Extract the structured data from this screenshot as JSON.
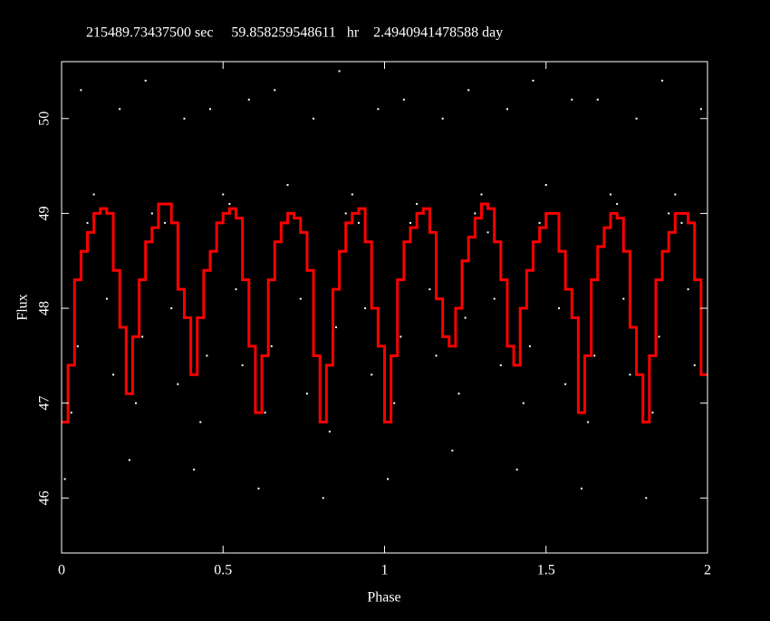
{
  "chart_data": {
    "type": "scatter_step",
    "title": "215489.73437500 sec     59.858259548611   hr    2.4940941478588 day",
    "xlabel": "Phase",
    "ylabel": "Flux",
    "xlim": [
      0,
      2
    ],
    "ylim": [
      45.42,
      50.6
    ],
    "xticks": [
      0,
      0.5,
      1,
      1.5,
      2
    ],
    "yticks": [
      46,
      47,
      48,
      49,
      50
    ],
    "points": {
      "color": "#ffffff",
      "x": [
        0.01,
        0.03,
        0.05,
        0.08,
        0.1,
        0.12,
        0.14,
        0.16,
        0.18,
        0.06,
        0.21,
        0.23,
        0.25,
        0.28,
        0.3,
        0.32,
        0.34,
        0.36,
        0.38,
        0.26,
        0.41,
        0.43,
        0.45,
        0.48,
        0.5,
        0.52,
        0.54,
        0.56,
        0.58,
        0.46,
        0.61,
        0.63,
        0.65,
        0.68,
        0.7,
        0.72,
        0.74,
        0.76,
        0.78,
        0.66,
        0.81,
        0.83,
        0.85,
        0.88,
        0.9,
        0.92,
        0.94,
        0.96,
        0.98,
        0.86,
        1.01,
        1.03,
        1.05,
        1.08,
        1.1,
        1.12,
        1.14,
        1.16,
        1.18,
        1.06,
        1.21,
        1.23,
        1.25,
        1.28,
        1.3,
        1.32,
        1.34,
        1.36,
        1.38,
        1.26,
        1.41,
        1.43,
        1.45,
        1.48,
        1.5,
        1.52,
        1.54,
        1.56,
        1.58,
        1.46,
        1.61,
        1.63,
        1.65,
        1.68,
        1.7,
        1.72,
        1.74,
        1.76,
        1.78,
        1.66,
        1.81,
        1.83,
        1.85,
        1.88,
        1.9,
        1.92,
        1.94,
        1.96,
        1.98,
        1.86
      ],
      "y": [
        46.2,
        46.9,
        47.6,
        48.9,
        49.2,
        49.0,
        48.1,
        47.3,
        50.1,
        50.3,
        46.4,
        47.0,
        47.7,
        49.0,
        49.1,
        48.9,
        48.0,
        47.2,
        50.0,
        50.4,
        46.3,
        46.8,
        47.5,
        48.8,
        49.2,
        49.1,
        48.2,
        47.4,
        50.2,
        50.1,
        46.1,
        46.9,
        47.6,
        48.9,
        49.3,
        49.0,
        48.1,
        47.1,
        50.0,
        50.3,
        46.0,
        46.7,
        47.8,
        49.0,
        49.2,
        48.9,
        48.0,
        47.3,
        50.1,
        50.5,
        46.2,
        47.0,
        47.7,
        48.9,
        49.1,
        49.0,
        48.2,
        47.5,
        50.0,
        50.2,
        46.5,
        47.1,
        47.9,
        49.0,
        49.2,
        48.8,
        48.1,
        47.4,
        50.1,
        50.3,
        46.3,
        47.0,
        47.6,
        48.9,
        49.3,
        49.0,
        48.0,
        47.2,
        50.2,
        50.4,
        46.1,
        46.8,
        47.5,
        48.8,
        49.2,
        49.1,
        48.1,
        47.3,
        50.0,
        50.2,
        46.0,
        46.9,
        47.7,
        49.0,
        49.2,
        48.9,
        48.2,
        47.4,
        50.1,
        50.4
      ]
    },
    "series": [
      {
        "color": "#ff0000",
        "x": [
          0,
          0.02,
          0.04,
          0.06,
          0.08,
          0.1,
          0.12,
          0.14,
          0.16,
          0.18,
          0.2,
          0.22,
          0.24,
          0.26,
          0.28,
          0.3,
          0.32,
          0.34,
          0.36,
          0.38,
          0.4,
          0.42,
          0.44,
          0.46,
          0.48,
          0.5,
          0.52,
          0.54,
          0.56,
          0.58,
          0.6,
          0.62,
          0.64,
          0.66,
          0.68,
          0.7,
          0.72,
          0.74,
          0.76,
          0.78,
          0.8,
          0.82,
          0.84,
          0.86,
          0.88,
          0.9,
          0.92,
          0.94,
          0.96,
          0.98,
          1,
          1.02,
          1.04,
          1.06,
          1.08,
          1.1,
          1.12,
          1.14,
          1.16,
          1.18,
          1.2,
          1.22,
          1.24,
          1.26,
          1.28,
          1.3,
          1.32,
          1.34,
          1.36,
          1.38,
          1.4,
          1.42,
          1.44,
          1.46,
          1.48,
          1.5,
          1.52,
          1.54,
          1.56,
          1.58,
          1.6,
          1.62,
          1.64,
          1.66,
          1.68,
          1.7,
          1.72,
          1.74,
          1.76,
          1.78,
          1.8,
          1.82,
          1.84,
          1.86,
          1.88,
          1.9,
          1.92,
          1.94,
          1.96,
          1.98
        ],
        "values": [
          46.8,
          47.4,
          48.3,
          48.6,
          48.8,
          49.0,
          49.05,
          49.0,
          48.4,
          47.8,
          47.1,
          47.7,
          48.3,
          48.7,
          48.85,
          49.1,
          49.1,
          48.9,
          48.2,
          47.9,
          47.3,
          47.9,
          48.4,
          48.6,
          48.9,
          49.0,
          49.05,
          48.95,
          48.3,
          47.6,
          46.9,
          47.5,
          48.3,
          48.7,
          48.9,
          49.0,
          48.95,
          48.8,
          48.4,
          47.5,
          46.8,
          47.4,
          48.2,
          48.6,
          48.9,
          49.0,
          49.05,
          48.7,
          48.0,
          47.6,
          46.8,
          47.5,
          48.3,
          48.7,
          48.85,
          49.0,
          49.05,
          48.8,
          48.1,
          47.7,
          47.6,
          48.0,
          48.5,
          48.75,
          48.95,
          49.1,
          49.05,
          48.7,
          48.3,
          47.6,
          47.4,
          48.0,
          48.4,
          48.7,
          48.85,
          49.0,
          49.0,
          48.6,
          48.2,
          47.9,
          46.9,
          47.5,
          48.3,
          48.65,
          48.85,
          49.0,
          48.95,
          48.6,
          47.8,
          47.3,
          46.8,
          47.5,
          48.3,
          48.6,
          48.8,
          49.0,
          49.0,
          48.9,
          48.3,
          47.3
        ]
      }
    ]
  }
}
